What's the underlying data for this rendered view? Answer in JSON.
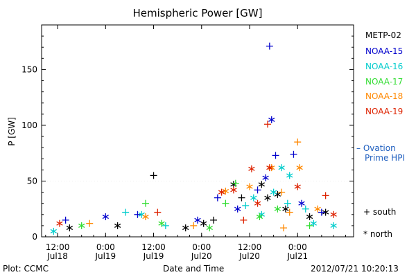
{
  "chart_data": {
    "type": "scatter",
    "title": "Hemispheric Power [GW]",
    "xlabel": "Date and Time",
    "ylabel": "P [GW]",
    "xlim": [
      "2012-07-18 08:00",
      "2012-07-21 14:00"
    ],
    "ylim": [
      0,
      190
    ],
    "y_ticks": [
      0,
      50,
      100,
      150
    ],
    "x_ticks": [
      {
        "t": "2012-07-18 12:00",
        "line1": "12:00",
        "line2": "Jul18"
      },
      {
        "t": "2012-07-19 00:00",
        "line1": "0:00",
        "line2": "Jul19"
      },
      {
        "t": "2012-07-19 12:00",
        "line1": "12:00",
        "line2": "Jul19"
      },
      {
        "t": "2012-07-20 00:00",
        "line1": "0:00",
        "line2": "Jul20"
      },
      {
        "t": "2012-07-20 12:00",
        "line1": "12:00",
        "line2": "Jul20"
      },
      {
        "t": "2012-07-21 00:00",
        "line1": "0:00",
        "line2": "Jul21"
      }
    ],
    "legend_position": "right",
    "series": [
      {
        "name": "METP-02",
        "color": "#000000",
        "values": [
          [
            "2012-07-19 12:00",
            55,
            "+"
          ],
          [
            "2012-07-20 00:30",
            12,
            "*"
          ],
          [
            "2012-07-20 08:00",
            47,
            "*"
          ],
          [
            "2012-07-20 10:00",
            35,
            "+"
          ],
          [
            "2012-07-20 15:00",
            47,
            "*"
          ],
          [
            "2012-07-20 16:30",
            35,
            "*"
          ],
          [
            "2012-07-20 19:00",
            38,
            "*"
          ],
          [
            "2012-07-20 21:00",
            25,
            "*"
          ],
          [
            "2012-07-21 03:00",
            18,
            "*"
          ],
          [
            "2012-07-21 07:00",
            22,
            "*"
          ],
          [
            "2012-07-18 15:00",
            8,
            "*"
          ],
          [
            "2012-07-19 03:00",
            10,
            "*"
          ],
          [
            "2012-07-20 03:00",
            15,
            "+"
          ],
          [
            "2012-07-19 20:00",
            8,
            "*"
          ]
        ]
      },
      {
        "name": "NOAA-15",
        "color": "#0000cc",
        "values": [
          [
            "2012-07-20 17:00",
            171,
            "+"
          ],
          [
            "2012-07-20 17:30",
            105,
            "*"
          ],
          [
            "2012-07-20 18:30",
            73,
            "+"
          ],
          [
            "2012-07-20 23:00",
            74,
            "+"
          ],
          [
            "2012-07-20 16:00",
            53,
            "*"
          ],
          [
            "2012-07-20 14:00",
            42,
            "+"
          ],
          [
            "2012-07-20 04:00",
            35,
            "+"
          ],
          [
            "2012-07-18 14:00",
            15,
            "+"
          ],
          [
            "2012-07-19 00:00",
            18,
            "*"
          ],
          [
            "2012-07-19 08:00",
            20,
            "+"
          ],
          [
            "2012-07-19 23:00",
            15,
            "*"
          ],
          [
            "2012-07-21 01:00",
            30,
            "*"
          ],
          [
            "2012-07-21 06:00",
            22,
            "+"
          ],
          [
            "2012-07-20 09:00",
            25,
            "*"
          ]
        ]
      },
      {
        "name": "NOAA-16",
        "color": "#00cccc",
        "values": [
          [
            "2012-07-20 20:00",
            62,
            "*"
          ],
          [
            "2012-07-20 22:00",
            55,
            "*"
          ],
          [
            "2012-07-20 18:00",
            40,
            "*"
          ],
          [
            "2012-07-20 13:00",
            35,
            "*"
          ],
          [
            "2012-07-20 11:00",
            28,
            "+"
          ],
          [
            "2012-07-19 05:00",
            22,
            "+"
          ],
          [
            "2012-07-19 09:00",
            20,
            "*"
          ],
          [
            "2012-07-19 15:00",
            10,
            "+"
          ],
          [
            "2012-07-21 04:00",
            12,
            "*"
          ],
          [
            "2012-07-21 09:00",
            10,
            "*"
          ],
          [
            "2012-07-18 11:00",
            5,
            "*"
          ],
          [
            "2012-07-20 21:30",
            30,
            "+"
          ],
          [
            "2012-07-20 15:00",
            20,
            "*"
          ],
          [
            "2012-07-21 02:00",
            25,
            "+"
          ]
        ]
      },
      {
        "name": "NOAA-17",
        "color": "#33dd33",
        "values": [
          [
            "2012-07-20 08:30",
            48,
            "+"
          ],
          [
            "2012-07-19 10:00",
            30,
            "+"
          ],
          [
            "2012-07-20 06:00",
            30,
            "+"
          ],
          [
            "2012-07-20 19:00",
            25,
            "*"
          ],
          [
            "2012-07-18 18:00",
            10,
            "*"
          ],
          [
            "2012-07-19 14:00",
            12,
            "*"
          ],
          [
            "2012-07-20 02:00",
            8,
            "*"
          ],
          [
            "2012-07-21 03:00",
            10,
            "+"
          ],
          [
            "2012-07-20 14:30",
            18,
            "*"
          ]
        ]
      },
      {
        "name": "NOAA-18",
        "color": "#ff8800",
        "values": [
          [
            "2012-07-21 00:00",
            85,
            "+"
          ],
          [
            "2012-07-21 00:30",
            62,
            "*"
          ],
          [
            "2012-07-20 17:30",
            62,
            "*"
          ],
          [
            "2012-07-20 12:00",
            45,
            "*"
          ],
          [
            "2012-07-20 06:00",
            41,
            "*"
          ],
          [
            "2012-07-20 20:00",
            40,
            "+"
          ],
          [
            "2012-07-20 22:00",
            22,
            "+"
          ],
          [
            "2012-07-19 10:00",
            18,
            "*"
          ],
          [
            "2012-07-19 22:00",
            10,
            "+"
          ],
          [
            "2012-07-20 20:30",
            8,
            "+"
          ],
          [
            "2012-07-21 05:00",
            25,
            "*"
          ],
          [
            "2012-07-18 20:00",
            12,
            "+"
          ]
        ]
      },
      {
        "name": "NOAA-19",
        "color": "#dd2200",
        "values": [
          [
            "2012-07-20 16:30",
            101,
            "+"
          ],
          [
            "2012-07-20 17:00",
            62,
            "*"
          ],
          [
            "2012-07-20 12:30",
            61,
            "*"
          ],
          [
            "2012-07-21 00:00",
            45,
            "*"
          ],
          [
            "2012-07-20 08:00",
            42,
            "*"
          ],
          [
            "2012-07-20 05:00",
            40,
            "*"
          ],
          [
            "2012-07-20 14:00",
            30,
            "*"
          ],
          [
            "2012-07-19 13:00",
            22,
            "+"
          ],
          [
            "2012-07-21 07:00",
            37,
            "+"
          ],
          [
            "2012-07-21 09:00",
            20,
            "*"
          ],
          [
            "2012-07-18 12:30",
            12,
            "*"
          ],
          [
            "2012-07-20 10:30",
            15,
            "+"
          ]
        ]
      }
    ],
    "symbols": {
      "south": "+",
      "north": "*"
    }
  },
  "legend": {
    "items": [
      {
        "label": "METP-02",
        "color": "#000000"
      },
      {
        "label": "NOAA-15",
        "color": "#0000cc"
      },
      {
        "label": "NOAA-16",
        "color": "#00cccc"
      },
      {
        "label": "NOAA-17",
        "color": "#33dd33"
      },
      {
        "label": "NOAA-18",
        "color": "#ff8800"
      },
      {
        "label": "NOAA-19",
        "color": "#dd2200"
      }
    ],
    "ovation_line1": "– Ovation",
    "ovation_line2": "Prime HPI",
    "ovation_color": "#1f5fbf",
    "south_symbol": "+",
    "south_label": "south",
    "north_symbol": "*",
    "north_label": "north"
  },
  "footer": {
    "left": "Plot: CCMC",
    "right": "2012/07/21  10:20:13"
  }
}
